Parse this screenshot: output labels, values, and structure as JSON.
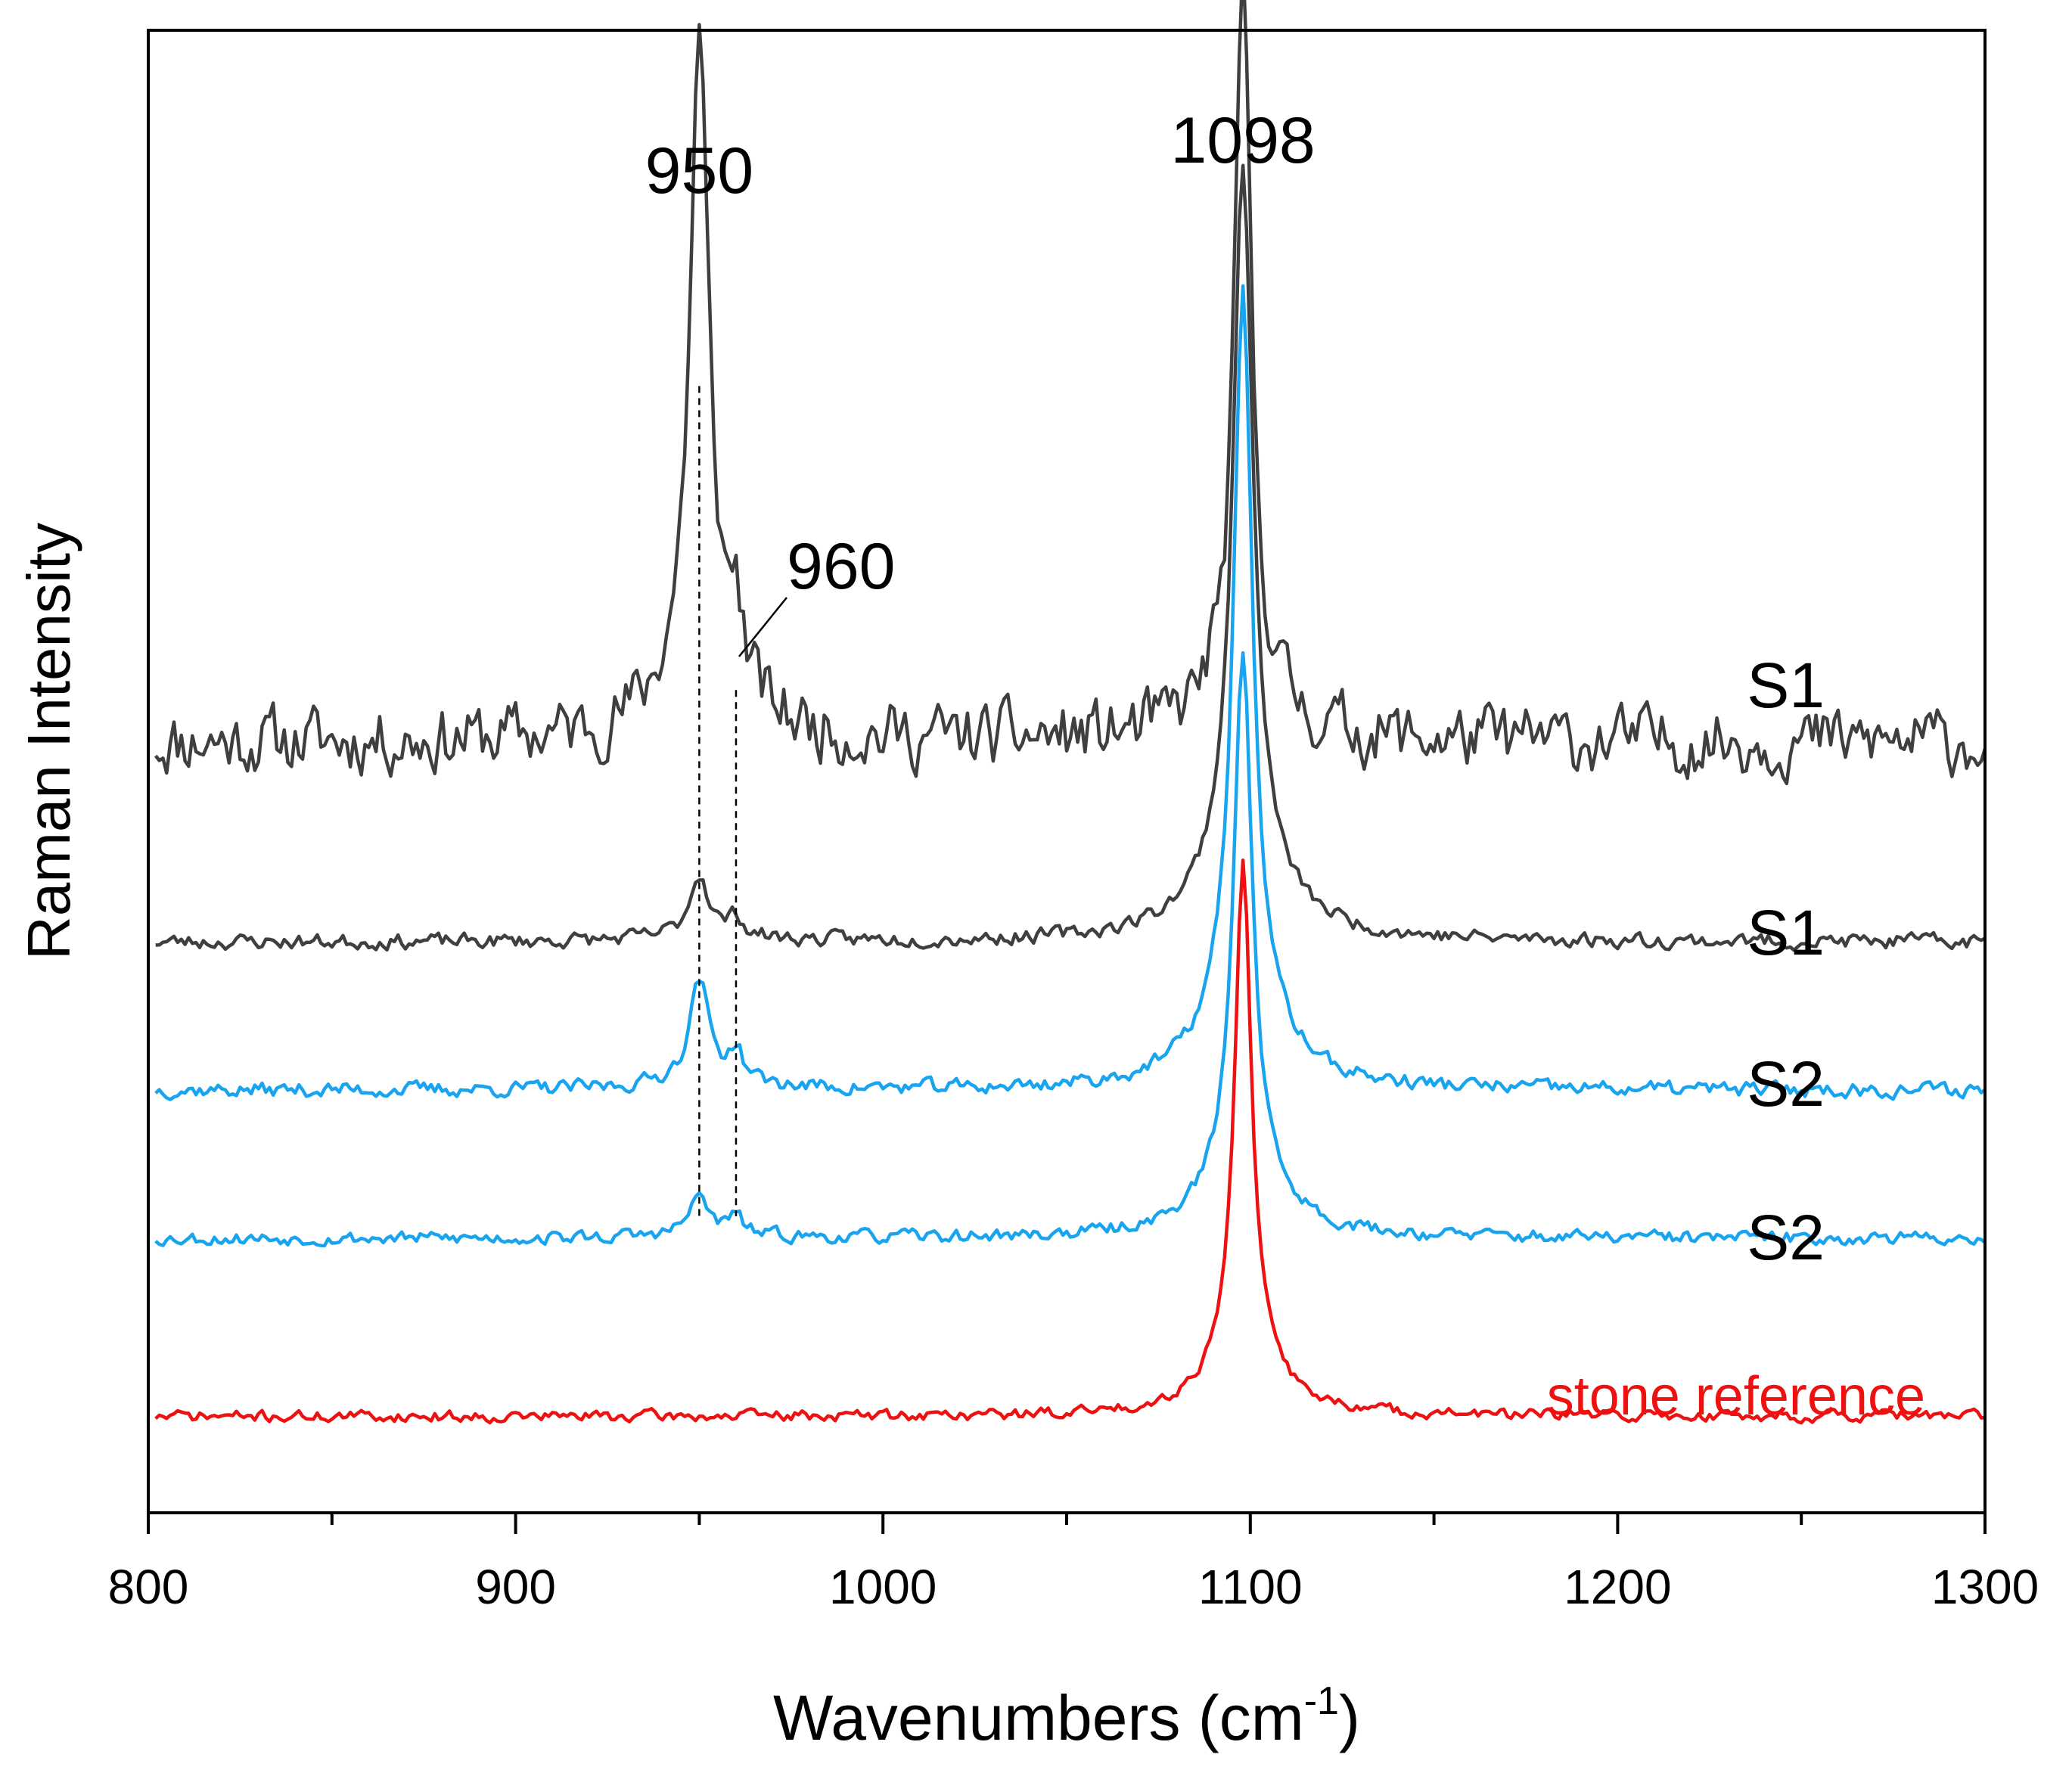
{
  "chart_data": {
    "type": "line",
    "xlabel_main": "Wavenumbers (cm",
    "xlabel_sup": "-1",
    "xlabel_close": ")",
    "ylabel": "Raman Intensity",
    "xlim": [
      800,
      1300
    ],
    "x_ticks": [
      800,
      900,
      1000,
      1100,
      1200,
      1300
    ],
    "x_tick_labels": [
      "800",
      "900",
      "1000",
      "1100",
      "1200",
      "1300"
    ],
    "minor_tick_step": 50,
    "y_ticks": false,
    "colors": {
      "dark": "#3f3f3f",
      "blue": "#18a4ef",
      "red": "#ee1111",
      "axis": "#000000"
    },
    "series": [
      {
        "name": "S1",
        "label": "S1",
        "color": "#3f3f3f",
        "baseline": 0.52,
        "noise": 0.035,
        "seed": 11,
        "peaks": [
          {
            "center": 950,
            "height": 0.42,
            "width": 3.0
          },
          {
            "center": 960,
            "height": 0.05,
            "width": 2.0
          },
          {
            "center": 1098,
            "height": 0.46,
            "width": 2.5
          }
        ]
      },
      {
        "name": "S1",
        "label": "S1",
        "color": "#3f3f3f",
        "baseline": 0.385,
        "noise": 0.008,
        "seed": 23,
        "peaks": [
          {
            "center": 950,
            "height": 0.04,
            "width": 3.0
          },
          {
            "center": 960,
            "height": 0.012,
            "width": 2.0
          },
          {
            "center": 1098,
            "height": 0.47,
            "width": 3.2
          }
        ]
      },
      {
        "name": "S2",
        "label": "S2",
        "color": "#18a4ef",
        "baseline": 0.285,
        "noise": 0.008,
        "seed": 37,
        "peaks": [
          {
            "center": 950,
            "height": 0.066,
            "width": 3.0
          },
          {
            "center": 960,
            "height": 0.02,
            "width": 2.0
          },
          {
            "center": 1098,
            "height": 0.485,
            "width": 3.0
          }
        ]
      },
      {
        "name": "S2",
        "label": "S2",
        "color": "#18a4ef",
        "baseline": 0.185,
        "noise": 0.007,
        "seed": 53,
        "peaks": [
          {
            "center": 950,
            "height": 0.025,
            "width": 3.0
          },
          {
            "center": 960,
            "height": 0.012,
            "width": 2.0
          },
          {
            "center": 1098,
            "height": 0.355,
            "width": 3.0
          }
        ]
      },
      {
        "name": "stone reference",
        "label": "stone reference",
        "color": "#ee1111",
        "baseline": 0.065,
        "noise": 0.006,
        "seed": 71,
        "peaks": [
          {
            "center": 1098,
            "height": 0.335,
            "width": 2.7
          }
        ]
      }
    ],
    "annotations": [
      {
        "text": "950",
        "x": 950
      },
      {
        "text": "1098",
        "x": 1098
      },
      {
        "text": "960",
        "x": 960
      }
    ],
    "reference_lines": [
      950,
      960
    ]
  }
}
